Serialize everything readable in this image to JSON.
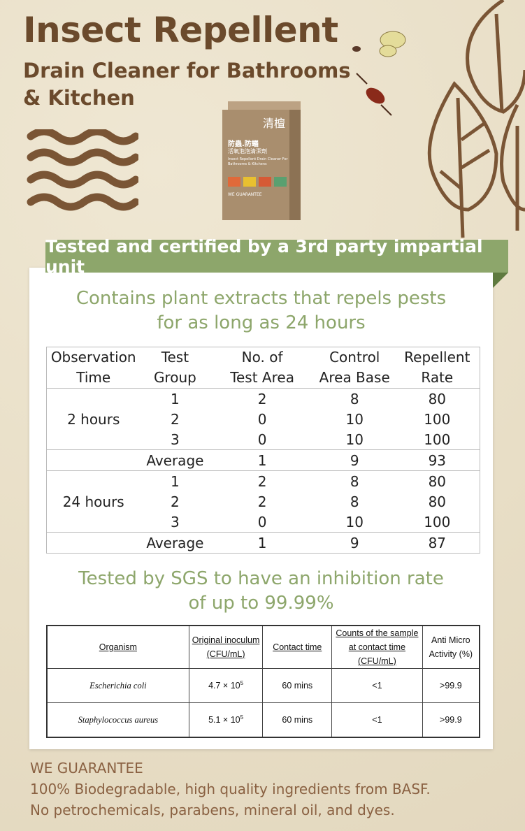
{
  "header": {
    "title": "Insect Repellent",
    "subtitle": "Drain Cleaner for Bathrooms & Kitchen"
  },
  "product_box": {
    "brand": "清檀",
    "name_zh": "防蟲.防蟻",
    "name_zh2": "活氧泡泡清潔劑",
    "name_en": "Insect Repellent Drain Cleaner For Bathrooms & Kitchens",
    "guarantee": "WE GUARANTEE"
  },
  "banner": "Tested and certified by a 3rd party impartial unit",
  "section1": {
    "heading_line1": "Contains plant extracts that repels pests",
    "heading_line2": "for as long as 24 hours"
  },
  "table1": {
    "headers": [
      [
        "Observation",
        "Time"
      ],
      [
        "Test",
        "Group"
      ],
      [
        "No. of",
        "Test Area"
      ],
      [
        "Control",
        "Area Base"
      ],
      [
        "Repellent",
        "Rate"
      ]
    ],
    "groups": [
      {
        "time": "2 hours",
        "rows": [
          [
            "1",
            "2",
            "8",
            "80"
          ],
          [
            "2",
            "0",
            "10",
            "100"
          ],
          [
            "3",
            "0",
            "10",
            "100"
          ]
        ],
        "average": [
          "Average",
          "1",
          "9",
          "93"
        ]
      },
      {
        "time": "24 hours",
        "rows": [
          [
            "1",
            "2",
            "8",
            "80"
          ],
          [
            "2",
            "2",
            "8",
            "80"
          ],
          [
            "3",
            "0",
            "10",
            "100"
          ]
        ],
        "average": [
          "Average",
          "1",
          "9",
          "87"
        ]
      }
    ]
  },
  "section2": {
    "heading_line1": "Tested by SGS to have an inhibition rate",
    "heading_line2": "of up to 99.99%"
  },
  "table2": {
    "headers": [
      "Organism",
      "Original inoculum (CFU/mL)",
      "Contact time",
      "Counts of the sample at contact time (CFU/mL)",
      "Anti Micro Activity (%)"
    ],
    "rows": [
      {
        "organism": "Escherichia coli",
        "inoculum": "4.7 × 10",
        "exp": "5",
        "time": "60 mins",
        "count": "<1",
        "activity": ">99.9"
      },
      {
        "organism": "Staphylococcus aureus",
        "inoculum": "5.1 × 10",
        "exp": "5",
        "time": "60 mins",
        "count": "<1",
        "activity": ">99.9"
      }
    ]
  },
  "footer": {
    "line1": "WE GUARANTEE",
    "line2": "100% Biodegradable, high quality ingredients from BASF.",
    "line3": "No petrochemicals, parabens, mineral oil, and dyes."
  },
  "colors": {
    "brown": "#6b4a2c",
    "green": "#8da66b",
    "background": "#ebe2cc"
  }
}
